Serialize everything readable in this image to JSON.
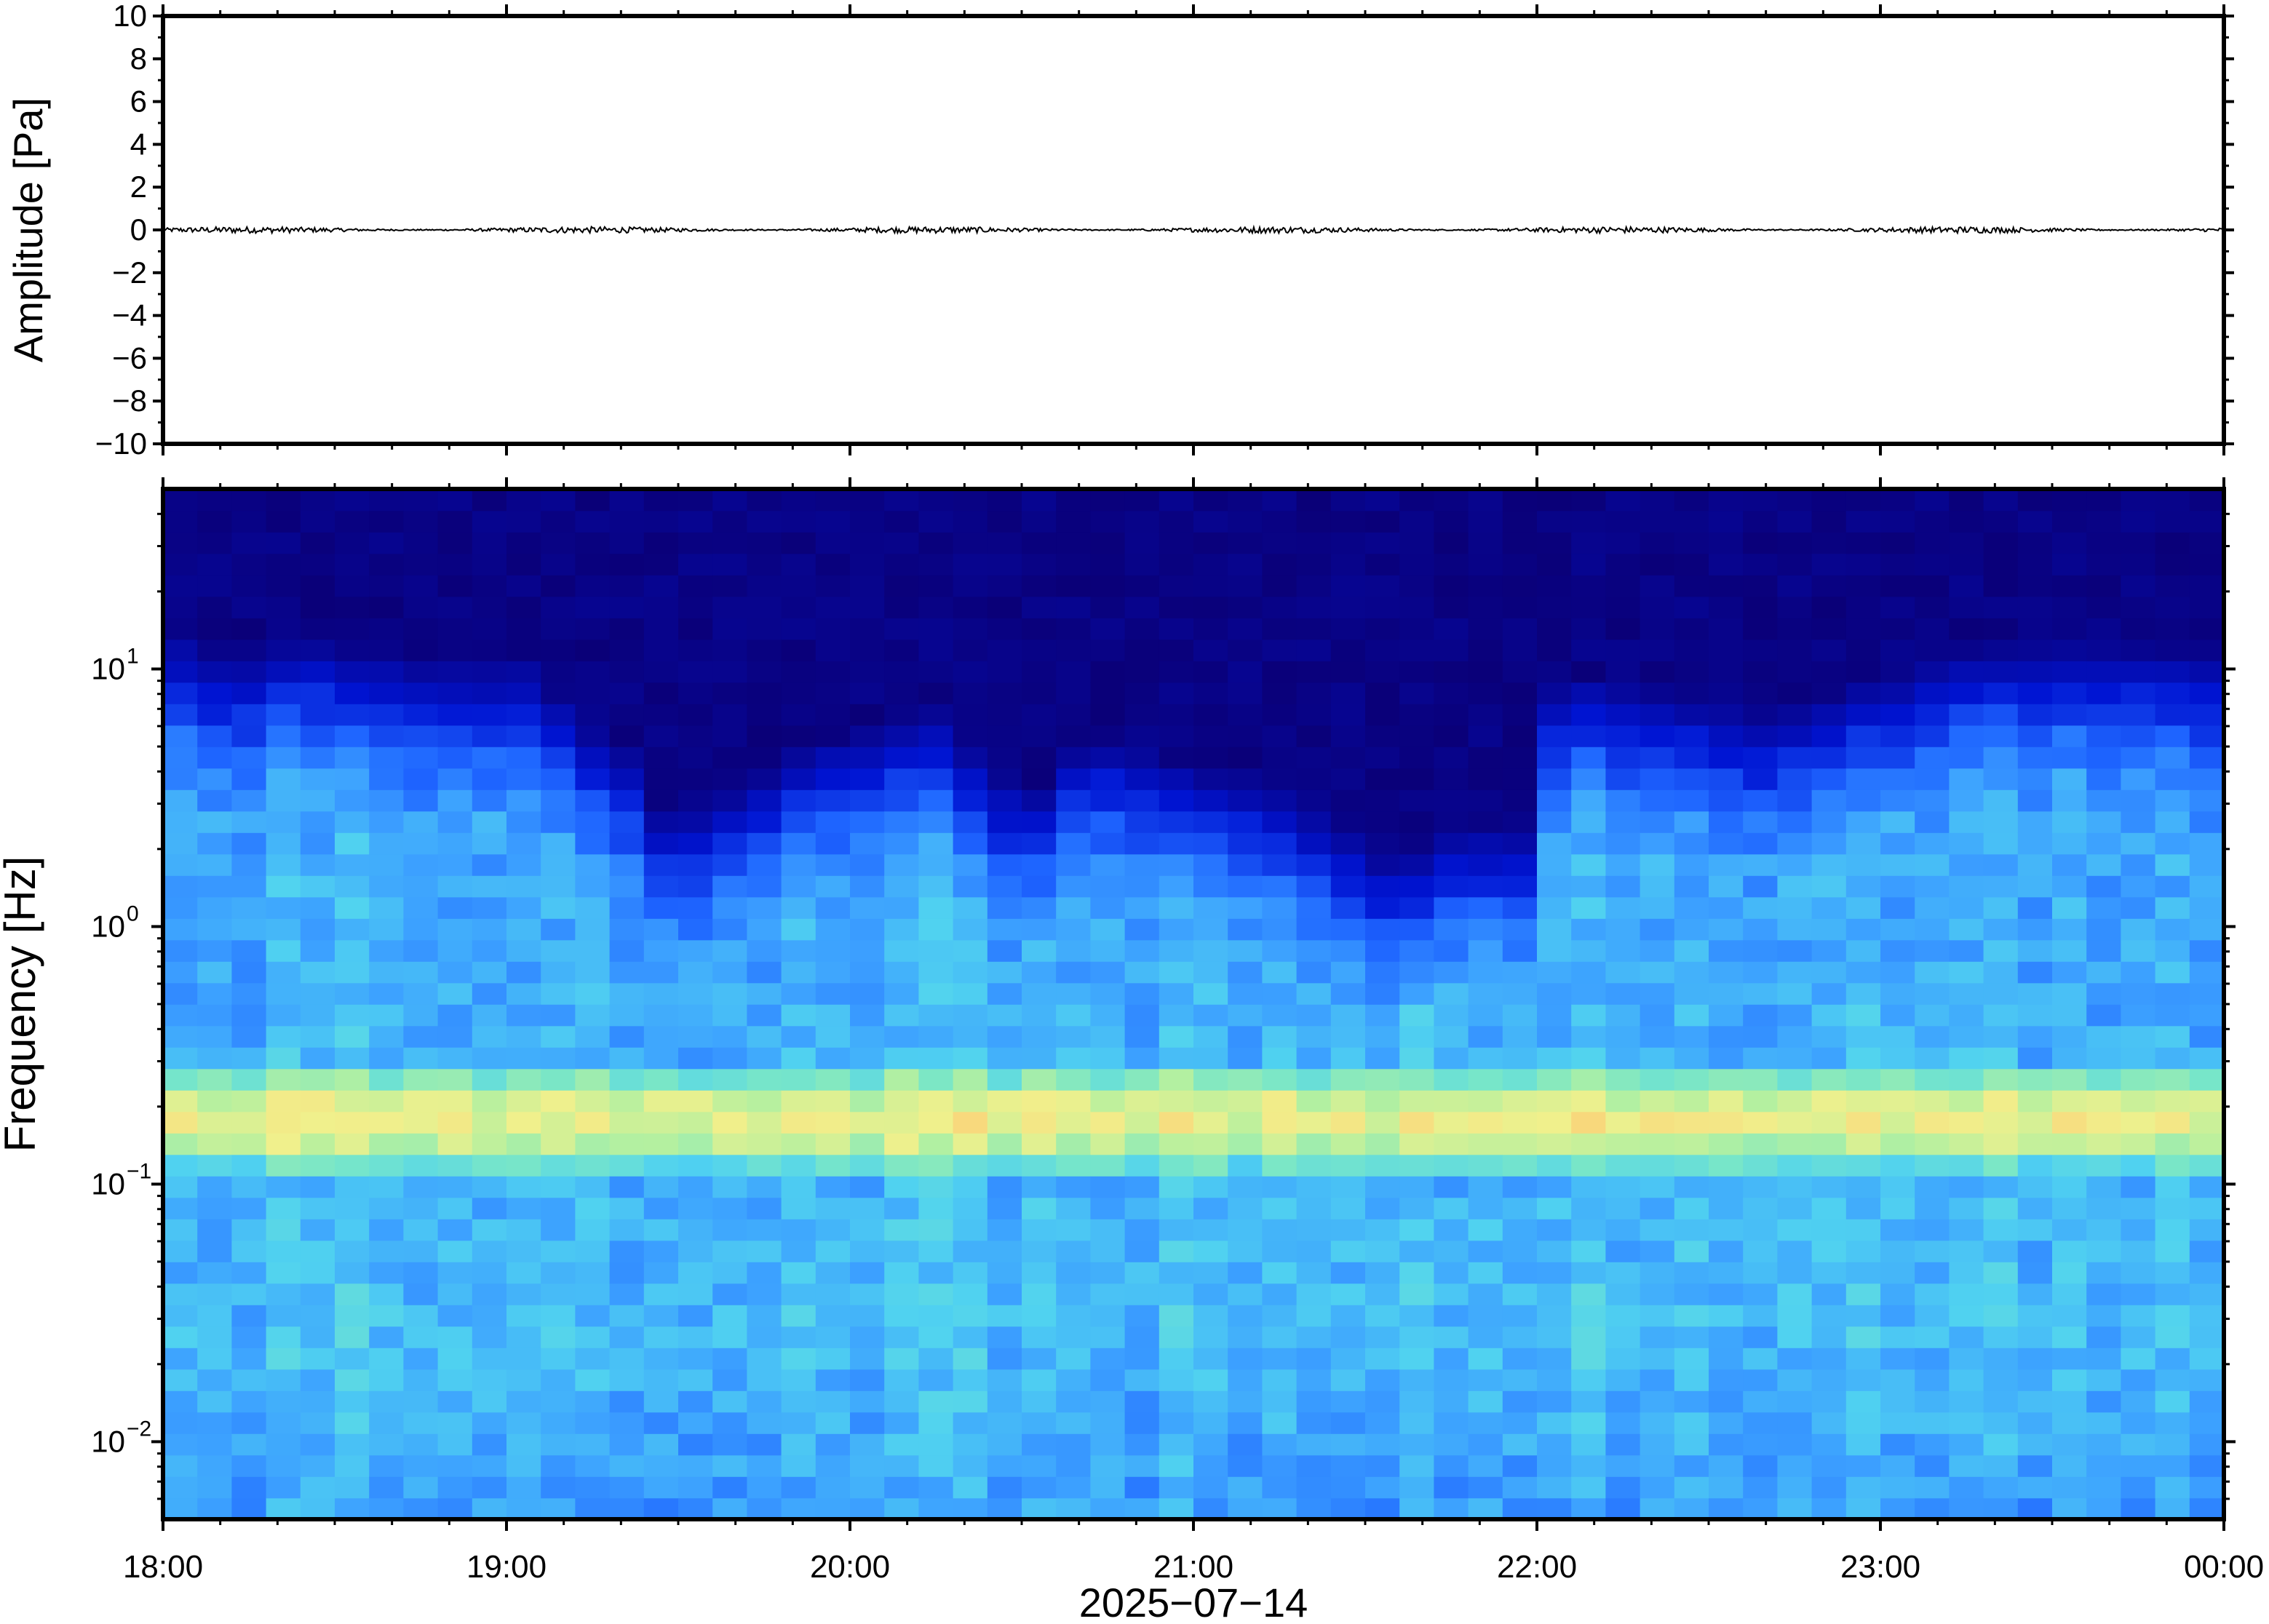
{
  "figure": {
    "xlabel": "2025−07−14"
  },
  "chart_data": [
    {
      "type": "line",
      "panel": "waveform",
      "ylabel": "Amplitude [Pa]",
      "ylim": [
        -10,
        10
      ],
      "y_ticks": [
        10,
        8,
        6,
        4,
        2,
        0,
        -2,
        -4,
        -6,
        -8,
        -10
      ],
      "y_tick_labels": [
        "10",
        "8",
        "6",
        "4",
        "2",
        "0",
        "−2",
        "−4",
        "−6",
        "−8",
        "−10"
      ],
      "x_range_hours": [
        18,
        24
      ],
      "series": [
        {
          "color": "#000000",
          "amplitude_pa": 0.15
        }
      ],
      "grid": false
    },
    {
      "type": "heatmap",
      "panel": "spectrogram",
      "ylabel": "Frequency [Hz]",
      "yscale": "log",
      "ylim": [
        0.005,
        50
      ],
      "y_ticks": [
        {
          "value": 10,
          "base": "10",
          "exp": "1"
        },
        {
          "value": 1,
          "base": "10",
          "exp": "0"
        },
        {
          "value": 0.1,
          "base": "10",
          "exp": "−1"
        },
        {
          "value": 0.01,
          "base": "10",
          "exp": "−2"
        }
      ],
      "x_ticks": [
        "18:00",
        "19:00",
        "20:00",
        "21:00",
        "22:00",
        "23:00",
        "00:00"
      ],
      "x_range_hours": [
        18,
        24
      ],
      "colormap": [
        "#0a0078",
        "#0014d2",
        "#1e64ff",
        "#3ca0ff",
        "#50d2f0",
        "#78e6c8",
        "#b4f0a0",
        "#f0f08c",
        "#fad278",
        "#f0a05a"
      ],
      "time_bins": 60,
      "freq_bins": 48,
      "noise_cutoff_hz_by_bin": [
        14,
        12,
        12,
        13,
        13,
        12,
        12,
        11,
        11,
        11,
        11,
        8,
        6,
        5,
        3,
        3,
        3.5,
        4,
        5,
        5.5,
        6,
        6.5,
        7,
        5,
        4,
        3.5,
        5,
        5.5,
        5,
        4.5,
        4,
        4,
        3.5,
        3,
        2.5,
        2,
        2,
        2.5,
        2.5,
        2.5,
        9,
        9.5,
        9,
        8.5,
        8,
        7.5,
        7,
        7.5,
        8,
        9,
        10,
        11,
        12,
        12.5,
        13,
        13,
        13,
        12.5,
        12,
        12
      ],
      "microbarom_peak_hz": 0.18,
      "grid": false
    }
  ]
}
